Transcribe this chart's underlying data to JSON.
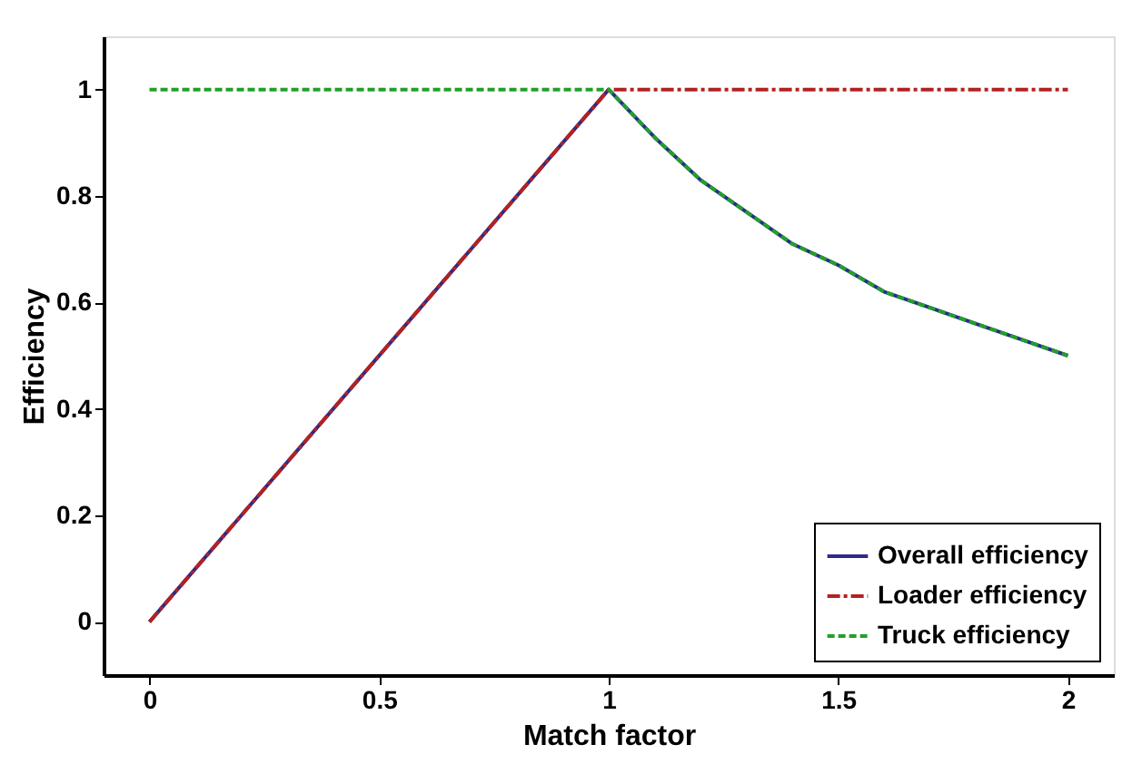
{
  "chart_data": {
    "type": "line",
    "xlabel": "Match factor",
    "ylabel": "Efficiency",
    "xlim": [
      -0.1,
      2.1
    ],
    "ylim": [
      -0.1,
      1.1
    ],
    "xticks": [
      0,
      0.5,
      1,
      1.5,
      2
    ],
    "yticks": [
      0,
      0.2,
      0.4,
      0.6,
      0.8,
      1
    ],
    "grid": false,
    "legend": "bottom right",
    "marker": "none",
    "series": [
      {
        "name": "Overall efficiency",
        "color": "#2b2b8c",
        "line_style": "solid",
        "x": [
          0,
          1,
          1.1,
          1.2,
          1.3,
          1.4,
          1.5,
          1.6,
          1.7,
          1.8,
          1.9,
          2
        ],
        "values": [
          0,
          1,
          0.91,
          0.83,
          0.77,
          0.71,
          0.67,
          0.62,
          0.59,
          0.56,
          0.53,
          0.5
        ]
      },
      {
        "name": "Loader efficiency",
        "color": "#b22222",
        "line_style": "dashdot",
        "x": [
          0,
          1,
          2
        ],
        "values": [
          0,
          1,
          1
        ]
      },
      {
        "name": "Truck efficiency",
        "color": "#22a02a",
        "line_style": "dashed",
        "x": [
          0,
          1,
          1.1,
          1.2,
          1.3,
          1.4,
          1.5,
          1.6,
          1.7,
          1.8,
          1.9,
          2
        ],
        "values": [
          1,
          1,
          0.91,
          0.83,
          0.77,
          0.71,
          0.67,
          0.62,
          0.59,
          0.56,
          0.53,
          0.5
        ]
      }
    ]
  }
}
